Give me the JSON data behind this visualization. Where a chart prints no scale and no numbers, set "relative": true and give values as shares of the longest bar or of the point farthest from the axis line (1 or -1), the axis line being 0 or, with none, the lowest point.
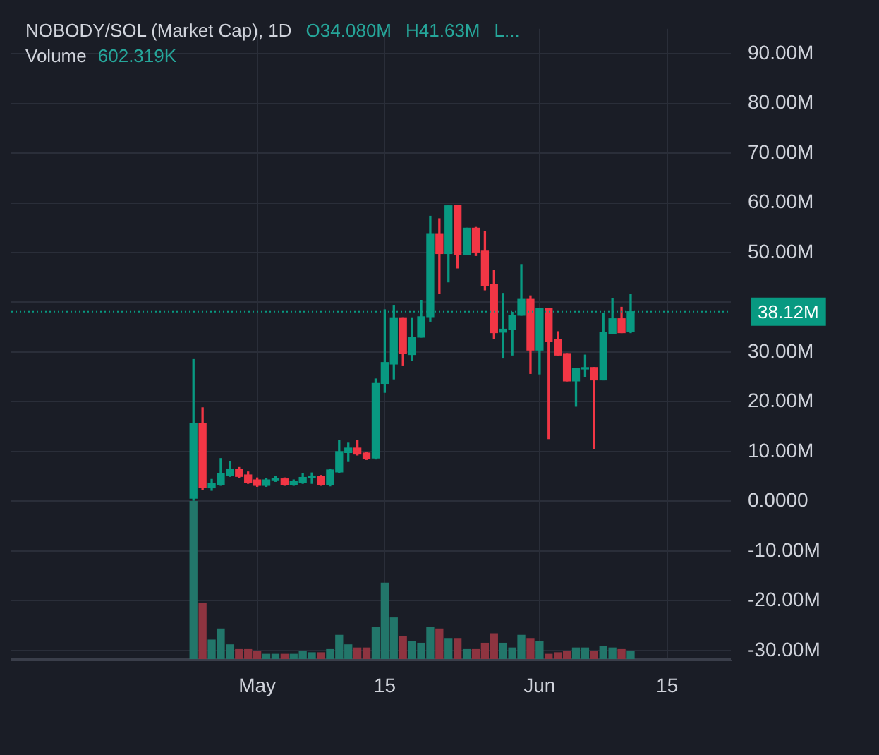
{
  "chart_data": [
    {
      "type": "candlestick",
      "title": "NOBODY/SOL (Market Cap), 1D",
      "annotations": [
        "O34.080M",
        "H41.63M",
        "L..."
      ],
      "x": [
        "--04-24",
        "--04-25",
        "--04-26",
        "--04-27",
        "--04-28",
        "--04-29",
        "--04-30",
        "--05-01",
        "--05-02",
        "--05-03",
        "--05-04",
        "--05-05",
        "--05-06",
        "--05-07",
        "--05-08",
        "--05-09",
        "--05-10",
        "--05-11",
        "--05-12",
        "--05-13",
        "--05-14",
        "--05-15",
        "--05-16",
        "--05-17",
        "--05-18",
        "--05-19",
        "--05-20",
        "--05-21",
        "--05-22",
        "--05-23",
        "--05-24",
        "--05-25",
        "--05-26",
        "--05-27",
        "--05-28",
        "--05-29",
        "--05-30",
        "--05-31",
        "--06-01",
        "--06-02",
        "--06-03",
        "--06-04",
        "--06-05",
        "--06-06",
        "--06-07",
        "--06-08",
        "--06-09",
        "--06-10",
        "--06-11"
      ],
      "ohlc": [
        [
          0.6,
          28.5,
          0.2,
          15.6
        ],
        [
          15.6,
          18.8,
          2.4,
          2.7
        ],
        [
          2.7,
          4.4,
          2.2,
          3.6
        ],
        [
          3.4,
          8.6,
          3.2,
          5.6
        ],
        [
          5.2,
          8.0,
          5.0,
          6.5
        ],
        [
          6.4,
          6.8,
          4.8,
          5.0
        ],
        [
          5.3,
          5.9,
          3.6,
          3.8
        ],
        [
          4.3,
          4.7,
          3.0,
          3.2
        ],
        [
          3.2,
          4.6,
          3.0,
          4.3
        ],
        [
          4.3,
          5.0,
          4.0,
          4.6
        ],
        [
          4.5,
          4.7,
          3.2,
          3.3
        ],
        [
          3.3,
          4.3,
          3.2,
          4.0
        ],
        [
          3.8,
          5.6,
          3.6,
          4.8
        ],
        [
          4.8,
          5.7,
          3.6,
          5.0
        ],
        [
          5.0,
          5.2,
          3.2,
          3.3
        ],
        [
          3.3,
          6.5,
          3.1,
          6.3
        ],
        [
          5.9,
          12.2,
          5.8,
          10.0
        ],
        [
          9.8,
          11.7,
          8.0,
          10.7
        ],
        [
          10.7,
          12.3,
          9.3,
          9.5
        ],
        [
          9.7,
          9.9,
          8.4,
          8.6
        ],
        [
          8.7,
          24.6,
          8.5,
          23.7
        ],
        [
          23.7,
          38.5,
          21.9,
          27.9
        ],
        [
          27.6,
          39.4,
          24.6,
          36.9
        ],
        [
          36.9,
          36.9,
          27.4,
          29.7
        ],
        [
          29.5,
          36.9,
          28.3,
          33.0
        ],
        [
          33.0,
          40.4,
          33.0,
          37.1
        ],
        [
          37.1,
          57.3,
          36.2,
          53.8
        ],
        [
          53.8,
          56.8,
          41.8,
          49.8
        ],
        [
          49.8,
          59.4,
          44.1,
          59.4
        ],
        [
          59.4,
          59.4,
          46.9,
          49.6
        ],
        [
          49.6,
          54.9,
          49.6,
          54.9
        ],
        [
          54.9,
          55.2,
          49.4,
          50.1
        ],
        [
          50.3,
          54.2,
          42.5,
          43.4
        ],
        [
          43.6,
          46.4,
          32.7,
          33.9
        ],
        [
          34.0,
          41.8,
          28.8,
          34.6
        ],
        [
          34.6,
          38.0,
          29.4,
          37.4
        ],
        [
          37.4,
          47.6,
          37.4,
          40.6
        ],
        [
          40.6,
          41.3,
          25.7,
          30.4
        ],
        [
          30.4,
          38.7,
          25.6,
          38.7
        ],
        [
          38.7,
          38.7,
          12.6,
          32.2
        ],
        [
          32.5,
          34.1,
          29.4,
          29.4
        ],
        [
          29.7,
          29.7,
          24.2,
          24.2
        ],
        [
          24.2,
          26.7,
          19.1,
          26.7
        ],
        [
          26.6,
          29.4,
          25.1,
          26.8
        ],
        [
          26.9,
          26.9,
          10.6,
          24.4
        ],
        [
          24.4,
          37.8,
          24.4,
          33.9
        ],
        [
          33.7,
          40.8,
          33.7,
          36.7
        ],
        [
          36.7,
          39.0,
          33.9,
          33.9
        ],
        [
          34.08,
          41.63,
          33.9,
          38.12
        ]
      ],
      "colors": [
        "#089981",
        "#f23645",
        "#089981",
        "#089981",
        "#089981",
        "#f23645",
        "#f23645",
        "#f23645",
        "#089981",
        "#089981",
        "#f23645",
        "#089981",
        "#089981",
        "#089981",
        "#f23645",
        "#089981",
        "#089981",
        "#089981",
        "#f23645",
        "#f23645",
        "#089981",
        "#089981",
        "#089981",
        "#f23645",
        "#089981",
        "#089981",
        "#089981",
        "#f23645",
        "#089981",
        "#f23645",
        "#089981",
        "#f23645",
        "#f23645",
        "#f23645",
        "#089981",
        "#089981",
        "#089981",
        "#f23645",
        "#089981",
        "#f23645",
        "#f23645",
        "#f23645",
        "#089981",
        "#089981",
        "#f23645",
        "#089981",
        "#089981",
        "#f23645",
        "#089981"
      ],
      "xlim": [
        "--04-04",
        "--06-22"
      ],
      "xticks": [
        {
          "value": "--05-01",
          "label": "May"
        },
        {
          "value": "--05-15",
          "label": "15"
        },
        {
          "value": "--06-01",
          "label": "Jun"
        },
        {
          "value": "--06-15",
          "label": "15"
        }
      ],
      "ylim": [
        -32,
        95
      ],
      "yticks": [
        {
          "value": -30,
          "label": "-30.00M"
        },
        {
          "value": -20,
          "label": "-20.00M"
        },
        {
          "value": -10,
          "label": "-10.00M"
        },
        {
          "value": 0,
          "label": "0.0000"
        },
        {
          "value": 10,
          "label": "10.00M"
        },
        {
          "value": 20,
          "label": "20.00M"
        },
        {
          "value": 30,
          "label": "30.00M"
        },
        {
          "value": 40,
          "label": null
        },
        {
          "value": 50,
          "label": "50.00M"
        },
        {
          "value": 60,
          "label": "60.00M"
        },
        {
          "value": 70,
          "label": "70.00M"
        },
        {
          "value": 80,
          "label": "80.00M"
        },
        {
          "value": 90,
          "label": "90.00M"
        }
      ],
      "ref_lines": [
        {
          "axis": "y",
          "value": 38.12,
          "label": "38.12M",
          "color": "#089981",
          "line_style": "dotted"
        }
      ],
      "grid": true,
      "legend": false
    },
    {
      "type": "bar",
      "title": "Volume",
      "annotations": [
        "602.319K"
      ],
      "relative": true,
      "tick_labels": false,
      "grid": false,
      "legend": false,
      "x": [
        "--04-24",
        "--04-25",
        "--04-26",
        "--04-27",
        "--04-28",
        "--04-29",
        "--04-30",
        "--05-01",
        "--05-02",
        "--05-03",
        "--05-04",
        "--05-05",
        "--05-06",
        "--05-07",
        "--05-08",
        "--05-09",
        "--05-10",
        "--05-11",
        "--05-12",
        "--05-13",
        "--05-14",
        "--05-15",
        "--05-16",
        "--05-17",
        "--05-18",
        "--05-19",
        "--05-20",
        "--05-21",
        "--05-22",
        "--05-23",
        "--05-24",
        "--05-25",
        "--05-26",
        "--05-27",
        "--05-28",
        "--05-29",
        "--05-30",
        "--05-31",
        "--06-01",
        "--06-02",
        "--06-03",
        "--06-04",
        "--06-05",
        "--06-06",
        "--06-07",
        "--06-08",
        "--06-09",
        "--06-10",
        "--06-11"
      ],
      "xlim": [
        "--04-04",
        "--06-22"
      ],
      "values": [
        1,
        0.35,
        0.12,
        0.19,
        0.09,
        0.06,
        0.06,
        0.05,
        0.03,
        0.03,
        0.03,
        0.03,
        0.05,
        0.04,
        0.04,
        0.06,
        0.15,
        0.09,
        0.07,
        0.07,
        0.2,
        0.48,
        0.26,
        0.14,
        0.11,
        0.1,
        0.2,
        0.19,
        0.13,
        0.13,
        0.06,
        0.06,
        0.1,
        0.16,
        0.1,
        0.07,
        0.15,
        0.13,
        0.11,
        0.03,
        0.04,
        0.05,
        0.07,
        0.07,
        0.05,
        0.08,
        0.07,
        0.06,
        0.05
      ],
      "colors": [
        "#22766a",
        "#8e3440",
        "#22766a",
        "#22766a",
        "#22766a",
        "#8e3440",
        "#8e3440",
        "#8e3440",
        "#22766a",
        "#22766a",
        "#8e3440",
        "#22766a",
        "#22766a",
        "#22766a",
        "#8e3440",
        "#22766a",
        "#22766a",
        "#22766a",
        "#8e3440",
        "#8e3440",
        "#22766a",
        "#22766a",
        "#22766a",
        "#8e3440",
        "#22766a",
        "#22766a",
        "#22766a",
        "#8e3440",
        "#22766a",
        "#8e3440",
        "#22766a",
        "#8e3440",
        "#8e3440",
        "#8e3440",
        "#22766a",
        "#22766a",
        "#22766a",
        "#8e3440",
        "#22766a",
        "#8e3440",
        "#8e3440",
        "#8e3440",
        "#22766a",
        "#22766a",
        "#8e3440",
        "#22766a",
        "#22766a",
        "#8e3440",
        "#22766a"
      ]
    }
  ]
}
